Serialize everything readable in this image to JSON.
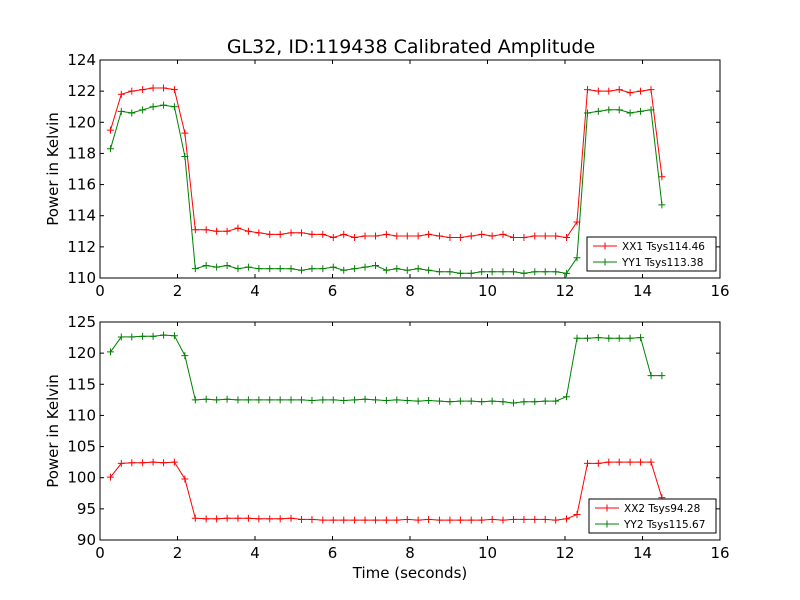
{
  "chart_data": [
    {
      "type": "line",
      "title": "GL32, ID:119438 Calibrated Amplitude",
      "xlabel": "",
      "ylabel": "Power in Kelvin",
      "xlim": [
        0,
        16
      ],
      "ylim": [
        110,
        124
      ],
      "xticks": [
        "0",
        "2",
        "4",
        "6",
        "8",
        "10",
        "12",
        "14",
        "16"
      ],
      "yticks": [
        "110",
        "112",
        "114",
        "116",
        "118",
        "120",
        "122",
        "124"
      ],
      "legend": "lower-right",
      "grid": false,
      "x": [
        0.27,
        0.55,
        0.82,
        1.1,
        1.37,
        1.64,
        1.92,
        2.19,
        2.46,
        2.74,
        3.01,
        3.28,
        3.56,
        3.83,
        4.1,
        4.38,
        4.65,
        4.93,
        5.2,
        5.47,
        5.75,
        6.02,
        6.29,
        6.57,
        6.84,
        7.11,
        7.39,
        7.66,
        7.93,
        8.21,
        8.48,
        8.76,
        9.03,
        9.3,
        9.58,
        9.85,
        10.12,
        10.4,
        10.67,
        10.94,
        11.22,
        11.49,
        11.76,
        12.04,
        12.31,
        12.58,
        12.86,
        13.13,
        13.4,
        13.68,
        13.95,
        14.22,
        14.5
      ],
      "series": [
        {
          "name": "XX1 Tsys114.46",
          "color": "#ff0000",
          "values": [
            119.5,
            121.8,
            122.0,
            122.1,
            122.2,
            122.2,
            122.1,
            119.3,
            113.1,
            113.1,
            113.0,
            113.0,
            113.2,
            113.0,
            112.9,
            112.8,
            112.8,
            112.9,
            112.9,
            112.8,
            112.8,
            112.6,
            112.8,
            112.6,
            112.7,
            112.7,
            112.8,
            112.7,
            112.7,
            112.7,
            112.8,
            112.7,
            112.6,
            112.6,
            112.7,
            112.8,
            112.7,
            112.8,
            112.6,
            112.6,
            112.7,
            112.7,
            112.7,
            112.6,
            113.6,
            122.1,
            122.0,
            122.0,
            122.1,
            121.9,
            122.0,
            122.1,
            116.5
          ]
        },
        {
          "name": "YY1 Tsys113.38",
          "color": "#008000",
          "values": [
            118.3,
            120.7,
            120.6,
            120.8,
            121.0,
            121.1,
            121.0,
            117.8,
            110.6,
            110.8,
            110.7,
            110.8,
            110.6,
            110.7,
            110.6,
            110.6,
            110.6,
            110.6,
            110.5,
            110.6,
            110.6,
            110.7,
            110.5,
            110.6,
            110.7,
            110.8,
            110.5,
            110.6,
            110.5,
            110.6,
            110.5,
            110.4,
            110.4,
            110.3,
            110.3,
            110.4,
            110.4,
            110.4,
            110.4,
            110.3,
            110.4,
            110.4,
            110.4,
            110.3,
            111.3,
            120.6,
            120.7,
            120.8,
            120.8,
            120.6,
            120.7,
            120.8,
            114.7
          ]
        }
      ]
    },
    {
      "type": "line",
      "title": "",
      "xlabel": "Time (seconds)",
      "ylabel": "Power in Kelvin",
      "xlim": [
        0,
        16
      ],
      "ylim": [
        90,
        125
      ],
      "xticks": [
        "0",
        "2",
        "4",
        "6",
        "8",
        "10",
        "12",
        "14",
        "16"
      ],
      "yticks": [
        "90",
        "95",
        "100",
        "105",
        "110",
        "115",
        "120",
        "125"
      ],
      "legend": "lower-right",
      "grid": false,
      "x": [
        0.27,
        0.55,
        0.82,
        1.1,
        1.37,
        1.64,
        1.92,
        2.19,
        2.46,
        2.74,
        3.01,
        3.28,
        3.56,
        3.83,
        4.1,
        4.38,
        4.65,
        4.93,
        5.2,
        5.47,
        5.75,
        6.02,
        6.29,
        6.57,
        6.84,
        7.11,
        7.39,
        7.66,
        7.93,
        8.21,
        8.48,
        8.76,
        9.03,
        9.3,
        9.58,
        9.85,
        10.12,
        10.4,
        10.67,
        10.94,
        11.22,
        11.49,
        11.76,
        12.04,
        12.31,
        12.58,
        12.86,
        13.13,
        13.4,
        13.68,
        13.95,
        14.22,
        14.5
      ],
      "series": [
        {
          "name": "XX2 Tsys94.28",
          "color": "#ff0000",
          "values": [
            100.1,
            102.3,
            102.4,
            102.4,
            102.5,
            102.4,
            102.5,
            99.8,
            93.5,
            93.4,
            93.4,
            93.5,
            93.5,
            93.5,
            93.4,
            93.4,
            93.4,
            93.5,
            93.3,
            93.3,
            93.2,
            93.2,
            93.2,
            93.2,
            93.2,
            93.2,
            93.2,
            93.2,
            93.3,
            93.2,
            93.3,
            93.2,
            93.2,
            93.2,
            93.2,
            93.2,
            93.3,
            93.2,
            93.3,
            93.3,
            93.3,
            93.3,
            93.2,
            93.4,
            94.1,
            102.3,
            102.3,
            102.5,
            102.5,
            102.5,
            102.5,
            102.5,
            96.8
          ]
        },
        {
          "name": "YY2 Tsys115.67",
          "color": "#008000",
          "values": [
            120.2,
            122.6,
            122.6,
            122.7,
            122.7,
            122.9,
            122.8,
            119.6,
            112.5,
            112.6,
            112.5,
            112.6,
            112.5,
            112.5,
            112.5,
            112.5,
            112.5,
            112.5,
            112.5,
            112.4,
            112.5,
            112.5,
            112.4,
            112.5,
            112.6,
            112.5,
            112.4,
            112.5,
            112.4,
            112.3,
            112.4,
            112.3,
            112.2,
            112.3,
            112.3,
            112.2,
            112.3,
            112.2,
            112.0,
            112.2,
            112.2,
            112.3,
            112.3,
            113.0,
            122.4,
            122.4,
            122.5,
            122.4,
            122.4,
            122.4,
            122.5,
            116.4,
            116.4
          ]
        }
      ]
    }
  ]
}
